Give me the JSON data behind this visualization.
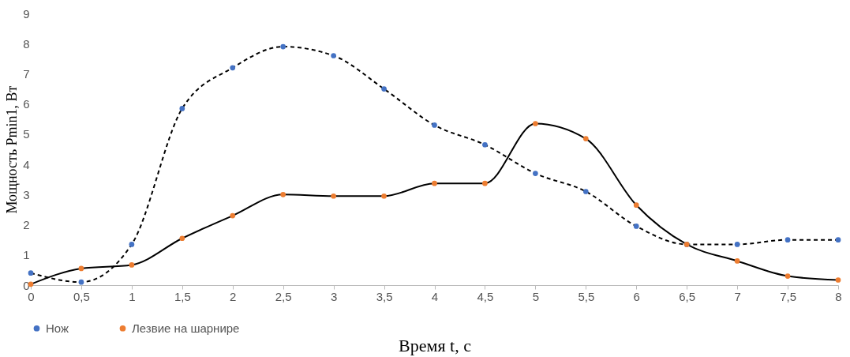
{
  "chart_data": {
    "type": "line",
    "xlabel": "Время t, с",
    "ylabel": "Мощность Pmin1, Вт",
    "x": [
      0,
      0.5,
      1,
      1.5,
      2,
      2.5,
      3,
      3.5,
      4,
      4.5,
      5,
      5.5,
      6,
      6.5,
      7,
      7.5,
      8
    ],
    "xlim": [
      0,
      8
    ],
    "xticks": [
      0,
      {
        "value": 0.5,
        "label": "0,5"
      },
      1,
      {
        "value": 1.5,
        "label": "1,5"
      },
      2,
      {
        "value": 2.5,
        "label": "2,5"
      },
      3,
      {
        "value": 3.5,
        "label": "3,5"
      },
      4,
      {
        "value": 4.5,
        "label": "4,5"
      },
      5,
      {
        "value": 5.5,
        "label": "5,5"
      },
      6,
      {
        "value": 6.5,
        "label": "6,5"
      },
      7,
      {
        "value": 7.5,
        "label": "7,5"
      },
      8
    ],
    "ylim": [
      0,
      9
    ],
    "yticks": [
      0,
      1,
      2,
      3,
      4,
      5,
      6,
      7,
      8,
      9
    ],
    "series": [
      {
        "name": "Нож",
        "color": "#4472c4",
        "line_style": "dashed",
        "values": [
          0.4,
          0.1,
          1.35,
          5.85,
          7.2,
          7.9,
          7.6,
          6.5,
          5.3,
          4.65,
          3.7,
          3.1,
          1.95,
          1.35,
          1.35,
          1.5,
          1.5
        ]
      },
      {
        "name": "Лезвие на шарнире",
        "color": "#ed7d31",
        "line_style": "solid",
        "values": [
          0.03,
          0.55,
          0.67,
          1.55,
          2.3,
          3.0,
          2.95,
          2.95,
          3.37,
          3.37,
          5.35,
          4.85,
          2.65,
          1.35,
          0.8,
          0.3,
          0.17
        ]
      }
    ],
    "marker": "circle",
    "grid": false,
    "legend": "bottom"
  }
}
